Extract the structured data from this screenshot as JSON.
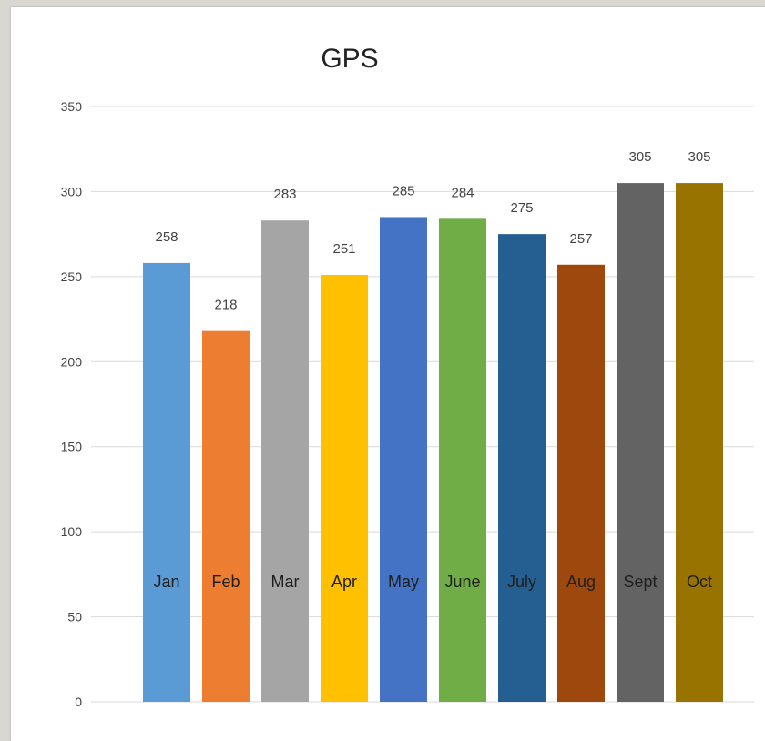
{
  "chart_data": {
    "type": "bar",
    "title": "GPS",
    "xlabel": "",
    "ylabel": "",
    "categories": [
      "Jan",
      "Feb",
      "Mar",
      "Apr",
      "May",
      "June",
      "July",
      "Aug",
      "Sept",
      "Oct"
    ],
    "values": [
      258,
      218,
      283,
      251,
      285,
      284,
      275,
      257,
      305,
      305
    ],
    "colors": [
      "#5b9bd5",
      "#ed7d31",
      "#a5a5a5",
      "#ffc000",
      "#4472c4",
      "#70ad47",
      "#255e91",
      "#9e480e",
      "#636363",
      "#997300"
    ],
    "ylim": [
      0,
      350
    ],
    "yticks": [
      0,
      50,
      100,
      150,
      200,
      250,
      300,
      350
    ],
    "grid": true,
    "legend": "none",
    "category_label_position": "inside-bar"
  }
}
